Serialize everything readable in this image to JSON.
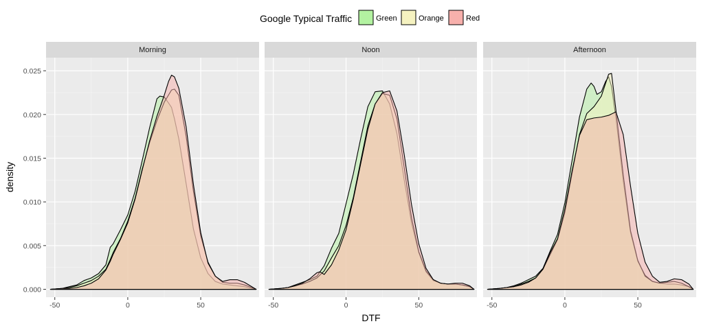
{
  "chart_data": {
    "type": "area",
    "subtype": "density",
    "title": "",
    "xlabel": "DTF",
    "ylabel": "density",
    "xlim": [
      -56,
      90
    ],
    "ylim": [
      -0.0009,
      0.0265
    ],
    "x_ticks": [
      -50,
      0,
      50
    ],
    "y_ticks": [
      0.0,
      0.005,
      0.01,
      0.015,
      0.02,
      0.025
    ],
    "y_tick_labels": [
      "0.000",
      "0.005",
      "0.010",
      "0.015",
      "0.020",
      "0.025"
    ],
    "grid": true,
    "background": "#ebebeb",
    "legend": {
      "title": "Google Typical Traffic",
      "placement": "top",
      "entries": [
        {
          "name": "Green",
          "color": "#b3f2a1"
        },
        {
          "name": "Orange",
          "color": "#f5f2c0"
        },
        {
          "name": "Red",
          "color": "#f7b0ac"
        }
      ]
    },
    "facets": [
      {
        "label": "Morning",
        "series": [
          {
            "name": "Green",
            "color": "#b3f2a1",
            "x": [
              -53,
              -45,
              -40,
              -35,
              -30,
              -25,
              -20,
              -15,
              -12,
              -10,
              -5,
              0,
              5,
              10,
              15,
              20,
              22,
              25,
              28,
              30,
              32,
              35,
              40,
              45,
              50,
              55,
              60,
              65,
              70,
              75,
              80,
              85,
              88
            ],
            "y": [
              0.0,
              0.0001,
              0.0003,
              0.0005,
              0.001,
              0.0013,
              0.0018,
              0.0028,
              0.0048,
              0.0052,
              0.0068,
              0.0085,
              0.0112,
              0.0148,
              0.0185,
              0.0218,
              0.0221,
              0.022,
              0.0213,
              0.0208,
              0.0195,
              0.0172,
              0.0121,
              0.0069,
              0.0036,
              0.0018,
              0.0009,
              0.0006,
              0.0005,
              0.0004,
              0.0003,
              0.0001,
              0.0
            ]
          },
          {
            "name": "Orange",
            "color": "#f5f2c0",
            "x": [
              -53,
              -45,
              -40,
              -35,
              -30,
              -25,
              -20,
              -15,
              -12,
              -10,
              -5,
              0,
              5,
              10,
              15,
              20,
              25,
              30,
              32,
              35,
              40,
              45,
              50,
              55,
              60,
              65,
              70,
              75,
              80,
              85,
              88
            ],
            "y": [
              0.0,
              0.0001,
              0.0002,
              0.0004,
              0.0007,
              0.001,
              0.0015,
              0.0023,
              0.0034,
              0.0042,
              0.0058,
              0.0078,
              0.0104,
              0.0138,
              0.0168,
              0.0193,
              0.0214,
              0.0228,
              0.0229,
              0.0222,
              0.0175,
              0.0112,
              0.0061,
              0.0031,
              0.0015,
              0.0008,
              0.0007,
              0.0007,
              0.0005,
              0.0002,
              0.0
            ]
          },
          {
            "name": "Red",
            "color": "#f7b0ac",
            "x": [
              -53,
              -45,
              -40,
              -35,
              -30,
              -25,
              -20,
              -15,
              -12,
              -10,
              -5,
              0,
              5,
              10,
              15,
              20,
              25,
              28,
              30,
              32,
              35,
              40,
              45,
              50,
              55,
              60,
              65,
              70,
              75,
              80,
              85,
              88
            ],
            "y": [
              0.0,
              0.0001,
              0.0001,
              0.0002,
              0.0004,
              0.0007,
              0.0012,
              0.0022,
              0.0032,
              0.004,
              0.0057,
              0.0076,
              0.0103,
              0.0137,
              0.017,
              0.0198,
              0.0222,
              0.0238,
              0.0245,
              0.0243,
              0.023,
              0.0186,
              0.012,
              0.0065,
              0.003,
              0.0015,
              0.0009,
              0.0011,
              0.0011,
              0.0008,
              0.0003,
              0.0
            ]
          }
        ]
      },
      {
        "label": "Noon",
        "series": [
          {
            "name": "Green",
            "color": "#b3f2a1",
            "x": [
              -53,
              -45,
              -40,
              -35,
              -30,
              -25,
              -20,
              -15,
              -10,
              -5,
              0,
              5,
              10,
              15,
              20,
              25,
              30,
              35,
              40,
              45,
              50,
              55,
              60,
              65,
              70,
              75,
              80,
              85,
              88
            ],
            "y": [
              0.0,
              0.0001,
              0.0002,
              0.0005,
              0.0008,
              0.0011,
              0.0015,
              0.0027,
              0.0047,
              0.0064,
              0.0098,
              0.0132,
              0.0172,
              0.0209,
              0.0226,
              0.0227,
              0.0212,
              0.0178,
              0.0125,
              0.0076,
              0.0042,
              0.002,
              0.001,
              0.0007,
              0.0006,
              0.0006,
              0.0005,
              0.0003,
              0.0
            ]
          },
          {
            "name": "Orange",
            "color": "#f5f2c0",
            "x": [
              -53,
              -45,
              -40,
              -35,
              -30,
              -25,
              -20,
              -15,
              -10,
              -5,
              0,
              5,
              10,
              15,
              20,
              25,
              30,
              35,
              40,
              45,
              50,
              55,
              60,
              65,
              70,
              75,
              80,
              85,
              88
            ],
            "y": [
              0.0,
              0.0001,
              0.0002,
              0.0004,
              0.0006,
              0.0009,
              0.0013,
              0.0021,
              0.0036,
              0.005,
              0.0073,
              0.0105,
              0.0146,
              0.0187,
              0.0212,
              0.0224,
              0.0222,
              0.0195,
              0.0139,
              0.0082,
              0.0043,
              0.0021,
              0.0011,
              0.0007,
              0.0006,
              0.0006,
              0.0005,
              0.0003,
              0.0
            ]
          },
          {
            "name": "Red",
            "color": "#f7b0ac",
            "x": [
              -53,
              -45,
              -40,
              -35,
              -30,
              -25,
              -20,
              -18,
              -15,
              -10,
              -5,
              0,
              5,
              10,
              15,
              20,
              25,
              30,
              35,
              40,
              45,
              50,
              55,
              60,
              65,
              70,
              75,
              80,
              85,
              88
            ],
            "y": [
              0.0,
              0.0001,
              0.0002,
              0.0004,
              0.0007,
              0.0012,
              0.0019,
              0.002,
              0.0017,
              0.0028,
              0.0045,
              0.0068,
              0.0103,
              0.0143,
              0.0183,
              0.0212,
              0.0225,
              0.0227,
              0.0204,
              0.0154,
              0.0097,
              0.0052,
              0.0024,
              0.0011,
              0.0007,
              0.0006,
              0.0007,
              0.0007,
              0.0004,
              0.0
            ]
          }
        ]
      },
      {
        "label": "Afternoon",
        "series": [
          {
            "name": "Green",
            "color": "#b3f2a1",
            "x": [
              -53,
              -45,
              -40,
              -35,
              -30,
              -25,
              -20,
              -15,
              -10,
              -5,
              0,
              5,
              10,
              15,
              18,
              20,
              22,
              25,
              28,
              30,
              32,
              35,
              40,
              45,
              50,
              55,
              60,
              65,
              70,
              75,
              80,
              85,
              88
            ],
            "y": [
              0.0,
              0.0001,
              0.0002,
              0.0004,
              0.0007,
              0.0011,
              0.0015,
              0.0024,
              0.0044,
              0.0063,
              0.0099,
              0.0148,
              0.0197,
              0.0229,
              0.0236,
              0.0232,
              0.0223,
              0.0226,
              0.0238,
              0.0243,
              0.0232,
              0.0196,
              0.0124,
              0.0065,
              0.0032,
              0.0016,
              0.0009,
              0.0007,
              0.0006,
              0.0006,
              0.0005,
              0.0003,
              0.0
            ]
          },
          {
            "name": "Orange",
            "color": "#f5f2c0",
            "x": [
              -53,
              -45,
              -40,
              -35,
              -30,
              -25,
              -20,
              -15,
              -10,
              -5,
              0,
              5,
              10,
              15,
              20,
              25,
              30,
              32,
              35,
              40,
              45,
              50,
              55,
              60,
              65,
              70,
              75,
              80,
              85,
              88
            ],
            "y": [
              0.0,
              0.0001,
              0.0002,
              0.0003,
              0.0006,
              0.0009,
              0.0013,
              0.0023,
              0.004,
              0.0057,
              0.0088,
              0.0133,
              0.0177,
              0.0201,
              0.0209,
              0.0221,
              0.0246,
              0.0247,
              0.0205,
              0.0131,
              0.0067,
              0.0033,
              0.0015,
              0.0009,
              0.0007,
              0.0008,
              0.0009,
              0.0007,
              0.0003,
              0.0
            ]
          },
          {
            "name": "Red",
            "color": "#f7b0ac",
            "x": [
              -53,
              -45,
              -40,
              -35,
              -30,
              -25,
              -20,
              -15,
              -10,
              -5,
              0,
              5,
              10,
              15,
              20,
              25,
              30,
              35,
              40,
              45,
              50,
              55,
              60,
              65,
              70,
              75,
              80,
              85,
              88
            ],
            "y": [
              0.0,
              0.0001,
              0.0002,
              0.0003,
              0.0005,
              0.0008,
              0.0013,
              0.0023,
              0.0042,
              0.0058,
              0.0092,
              0.0136,
              0.0176,
              0.0194,
              0.0196,
              0.0197,
              0.0199,
              0.0203,
              0.0177,
              0.0118,
              0.0064,
              0.0031,
              0.0015,
              0.0008,
              0.0009,
              0.0012,
              0.0011,
              0.0006,
              0.0
            ]
          }
        ]
      }
    ]
  }
}
